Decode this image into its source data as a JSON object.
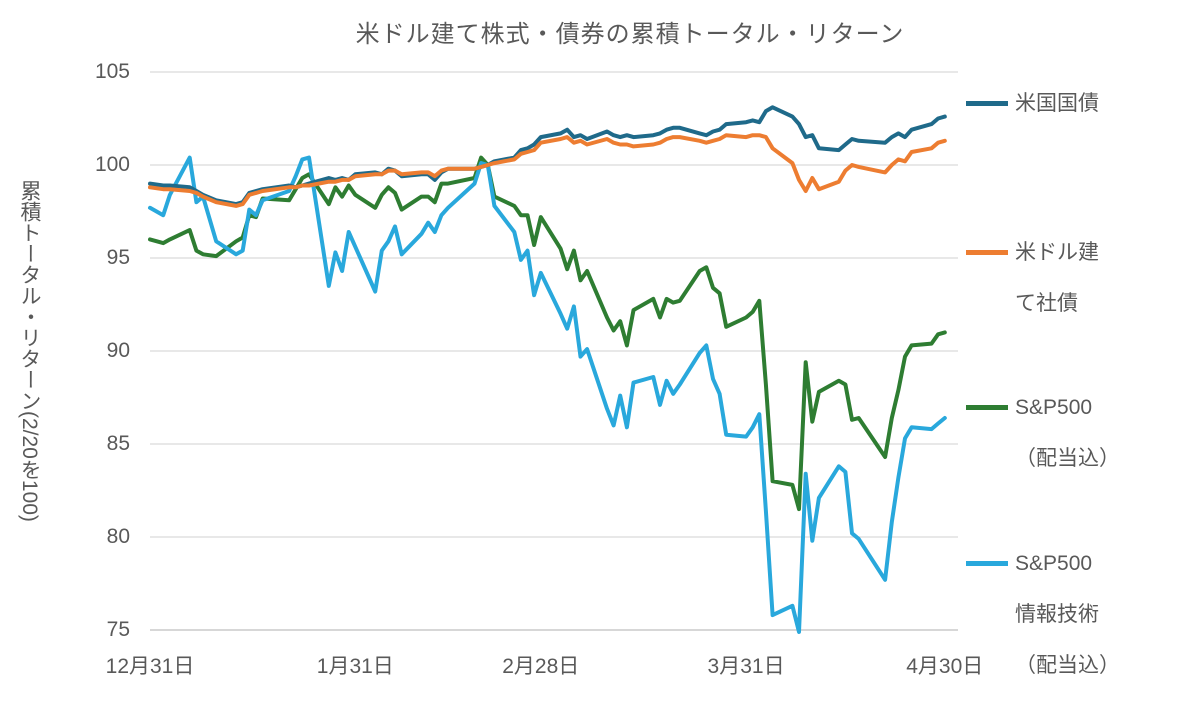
{
  "title": "米ドル建て株式・債券の累積トータル・リターン",
  "y_axis": {
    "title": "累積トータル・リターン(2/20を100)",
    "ticks": [
      105,
      100,
      95,
      90,
      85,
      80,
      75
    ]
  },
  "x_axis": {
    "ticks": [
      {
        "label": "12月31日",
        "offset": 0
      },
      {
        "label": "1月31日",
        "offset": 31
      },
      {
        "label": "2月28日",
        "offset": 59
      },
      {
        "label": "3月31日",
        "offset": 90
      },
      {
        "label": "4月30日",
        "offset": 120
      }
    ]
  },
  "legend": {
    "items": [
      {
        "id": "us-treasury",
        "color": "#1f6a8a",
        "lines": [
          "米国国債"
        ]
      },
      {
        "id": "usd-corp-bond",
        "color": "#ed7d31",
        "lines": [
          "米ドル建",
          "て社債"
        ]
      },
      {
        "id": "sp500",
        "color": "#2e7d32",
        "lines": [
          "S&P500",
          "（配当込）"
        ]
      },
      {
        "id": "sp500-it",
        "color": "#29a8dc",
        "lines": [
          "S&P500",
          "情報技術",
          "（配当込）"
        ]
      }
    ]
  },
  "colors": {
    "grid": "#d9d9d9",
    "axis": "#bfbfbf",
    "text": "#595959"
  },
  "chart_data": {
    "type": "line",
    "title": "米ドル建て株式・債券の累積トータル・リターン",
    "ylabel": "累積トータル・リターン(2/20を100)",
    "ylim": [
      75,
      105
    ],
    "x_max_offset": 122,
    "x_tick_labels": [
      "12月31日",
      "1月31日",
      "2月28日",
      "3月31日",
      "4月30日"
    ],
    "x_day_offsets": [
      0,
      2,
      3,
      6,
      7,
      8,
      10,
      13,
      14,
      15,
      16,
      17,
      21,
      22,
      23,
      24,
      27,
      28,
      29,
      30,
      31,
      34,
      35,
      36,
      37,
      38,
      41,
      42,
      43,
      44,
      45,
      49,
      50,
      51,
      52,
      55,
      56,
      57,
      58,
      59,
      62,
      63,
      64,
      65,
      66,
      69,
      70,
      71,
      72,
      73,
      76,
      77,
      78,
      79,
      80,
      83,
      84,
      85,
      86,
      87,
      90,
      91,
      92,
      93,
      94,
      97,
      98,
      99,
      100,
      101,
      104,
      105,
      106,
      107,
      111,
      112,
      113,
      114,
      115,
      118,
      119,
      120
    ],
    "series": [
      {
        "id": "us-treasury",
        "name": "米国国債",
        "color": "#1f6a8a",
        "values": [
          99.0,
          98.9,
          98.9,
          98.8,
          98.6,
          98.4,
          98.1,
          97.9,
          98.0,
          98.5,
          98.6,
          98.7,
          98.9,
          98.8,
          98.9,
          99.0,
          99.3,
          99.2,
          99.3,
          99.2,
          99.5,
          99.6,
          99.5,
          99.8,
          99.7,
          99.4,
          99.5,
          99.5,
          99.2,
          99.6,
          99.8,
          99.8,
          99.9,
          100.0,
          100.2,
          100.4,
          100.8,
          100.9,
          101.1,
          101.5,
          101.7,
          101.9,
          101.5,
          101.6,
          101.4,
          101.8,
          101.6,
          101.5,
          101.6,
          101.5,
          101.6,
          101.7,
          101.9,
          102.0,
          102.0,
          101.7,
          101.6,
          101.8,
          101.9,
          102.2,
          102.3,
          102.4,
          102.3,
          102.9,
          103.1,
          102.6,
          102.2,
          101.5,
          101.6,
          100.9,
          100.8,
          101.1,
          101.4,
          101.3,
          101.2,
          101.5,
          101.7,
          101.5,
          101.9,
          102.2,
          102.5,
          102.6
        ]
      },
      {
        "id": "usd-corp-bond",
        "name": "米ドル建て社債",
        "color": "#ed7d31",
        "values": [
          98.8,
          98.7,
          98.7,
          98.6,
          98.5,
          98.3,
          98.0,
          97.8,
          97.9,
          98.4,
          98.5,
          98.6,
          98.8,
          98.8,
          98.9,
          98.9,
          99.1,
          99.1,
          99.2,
          99.2,
          99.4,
          99.5,
          99.5,
          99.7,
          99.7,
          99.5,
          99.6,
          99.6,
          99.4,
          99.7,
          99.8,
          99.8,
          99.9,
          100.0,
          100.1,
          100.3,
          100.6,
          100.7,
          100.8,
          101.2,
          101.4,
          101.5,
          101.2,
          101.3,
          101.1,
          101.4,
          101.2,
          101.1,
          101.1,
          101.0,
          101.1,
          101.2,
          101.4,
          101.5,
          101.5,
          101.3,
          101.2,
          101.3,
          101.4,
          101.6,
          101.5,
          101.6,
          101.6,
          101.5,
          100.9,
          100.1,
          99.2,
          98.6,
          99.3,
          98.7,
          99.1,
          99.7,
          100.0,
          99.9,
          99.6,
          100.0,
          100.3,
          100.2,
          100.7,
          100.9,
          101.2,
          101.3
        ]
      },
      {
        "id": "sp500",
        "name": "S&P500（配当込）",
        "color": "#2e7d32",
        "values": [
          96.0,
          95.8,
          96.0,
          96.5,
          95.4,
          95.2,
          95.1,
          95.9,
          96.1,
          97.3,
          97.2,
          98.2,
          98.1,
          98.7,
          99.3,
          99.5,
          97.9,
          98.8,
          98.3,
          98.9,
          98.4,
          97.7,
          98.4,
          98.8,
          98.5,
          97.6,
          98.3,
          98.3,
          98.0,
          99.0,
          99.0,
          99.3,
          100.4,
          100.0,
          98.3,
          97.8,
          97.3,
          97.3,
          95.7,
          97.2,
          95.5,
          94.4,
          95.4,
          93.8,
          94.3,
          91.8,
          91.1,
          91.6,
          90.3,
          92.2,
          92.8,
          91.8,
          92.8,
          92.6,
          92.7,
          94.3,
          94.5,
          93.4,
          93.1,
          91.3,
          91.8,
          92.1,
          92.7,
          88.2,
          83.0,
          82.8,
          81.5,
          89.4,
          86.2,
          87.8,
          88.4,
          88.2,
          86.3,
          86.4,
          84.3,
          86.4,
          87.9,
          89.7,
          90.3,
          90.4,
          90.9,
          91.0
        ]
      },
      {
        "id": "sp500-it",
        "name": "S&P500情報技術（配当込）",
        "color": "#29a8dc",
        "values": [
          97.7,
          97.3,
          98.4,
          100.4,
          98.0,
          98.3,
          95.9,
          95.2,
          95.4,
          97.6,
          97.3,
          98.1,
          98.6,
          99.4,
          100.3,
          100.4,
          93.5,
          95.3,
          94.3,
          96.4,
          95.6,
          93.2,
          95.4,
          95.9,
          96.7,
          95.2,
          96.3,
          96.9,
          96.4,
          97.3,
          97.7,
          99.0,
          100.1,
          100.0,
          97.8,
          96.4,
          94.9,
          95.4,
          93.0,
          94.2,
          92.0,
          91.2,
          92.4,
          89.7,
          90.1,
          86.9,
          86.0,
          87.6,
          85.9,
          88.3,
          88.6,
          87.1,
          88.4,
          87.7,
          88.2,
          89.9,
          90.3,
          88.5,
          87.7,
          85.5,
          85.4,
          85.9,
          86.6,
          81.4,
          75.8,
          76.3,
          74.9,
          83.4,
          79.8,
          82.1,
          83.8,
          83.5,
          80.2,
          79.9,
          77.7,
          80.8,
          83.2,
          85.3,
          85.9,
          85.8,
          86.1,
          86.4
        ]
      }
    ]
  }
}
